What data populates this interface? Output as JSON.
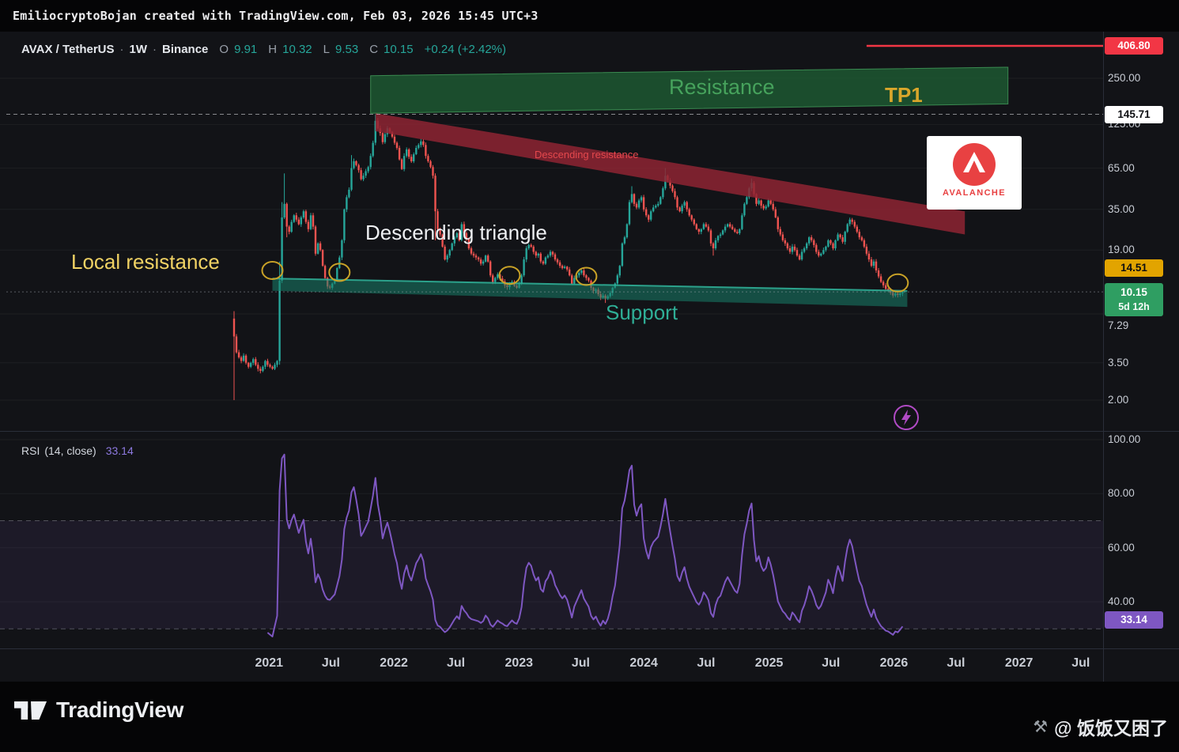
{
  "attribution": {
    "text": "EmiliocryptoBojan created with TradingView.com, Feb 03, 2026 15:45 UTC+3"
  },
  "symbol_bar": {
    "symbol": "AVAX / TetherUS",
    "sep": "·",
    "interval": "1W",
    "exchange": "Binance",
    "o_key": "O",
    "o_val": "9.91",
    "h_key": "H",
    "h_val": "10.32",
    "l_key": "L",
    "l_val": "9.53",
    "c_key": "C",
    "c_val": "10.15",
    "change": "+0.24 (+2.42%)"
  },
  "rsi": {
    "title": "RSI",
    "params": "(14, close)",
    "value": "33.14"
  },
  "annotations": {
    "resistance": "Resistance",
    "tp1": "TP1",
    "descending_resistance": "Descending resistance",
    "descending_triangle": "Descending triangle",
    "local_resistance": "Local resistance",
    "support": "Support"
  },
  "avalanche": {
    "name": "AVALANCHE"
  },
  "brand": {
    "name": "TradingView"
  },
  "watermark": {
    "text": "@ 饭饭又困了"
  },
  "colors": {
    "up": "#26a69a",
    "down": "#ef5350",
    "rsi": "#7e57c2",
    "alert_red": "#f23645",
    "label_yellow": "#e2a400",
    "label_green": "#2f9e62",
    "zone_green": "#1e5d33",
    "band_red": "#8e2433",
    "support_teal": "#17806a",
    "circle_gold": "#c9a227"
  },
  "price_axis": {
    "ticks": [
      {
        "label": "250.00",
        "price": 250
      },
      {
        "label": "125.00",
        "price": 125
      },
      {
        "label": "65.00",
        "price": 65
      },
      {
        "label": "35.00",
        "price": 35
      },
      {
        "label": "19.00",
        "price": 19
      },
      {
        "label": "7.29",
        "price": 7.29
      },
      {
        "label": "3.50",
        "price": 3.5
      },
      {
        "label": "2.00",
        "price": 2.0
      }
    ],
    "labels": {
      "alert": {
        "text": "406.80",
        "price": 406.8,
        "bg": "#f23645",
        "fg": "#ffffff"
      },
      "ath": {
        "text": "145.71",
        "price": 145.71,
        "bg": "#ffffff",
        "fg": "#0d0e12"
      },
      "level": {
        "text": "14.51",
        "price": 14.51,
        "bg": "#e2a400",
        "fg": "#0d0e12"
      },
      "last": {
        "text": "10.15",
        "countdown": "5d 12h",
        "price": 10.15,
        "bg": "#2f9e62",
        "fg": "#ffffff"
      }
    }
  },
  "rsi_axis": {
    "ticks": [
      {
        "label": "100.00",
        "value": 100
      },
      {
        "label": "80.00",
        "value": 80
      },
      {
        "label": "60.00",
        "value": 60
      },
      {
        "label": "40.00",
        "value": 40
      }
    ],
    "last": {
      "text": "33.14",
      "value": 33.14,
      "bg": "#7e57c2",
      "fg": "#ffffff"
    }
  },
  "time_axis": {
    "labels": [
      {
        "text": "2021",
        "week": 14.6
      },
      {
        "text": "Jul",
        "week": 40.4
      },
      {
        "text": "2022",
        "week": 66.7
      },
      {
        "text": "Jul",
        "week": 92.6
      },
      {
        "text": "2023",
        "week": 118.9
      },
      {
        "text": "Jul",
        "week": 144.7
      },
      {
        "text": "2024",
        "week": 171.0
      },
      {
        "text": "Jul",
        "week": 197.0
      },
      {
        "text": "2025",
        "week": 223.3
      },
      {
        "text": "Jul",
        "week": 249.1
      },
      {
        "text": "2026",
        "week": 275.4
      },
      {
        "text": "Jul",
        "week": 301.3
      },
      {
        "text": "2027",
        "week": 327.6
      },
      {
        "text": "Jul",
        "week": 353.4
      }
    ]
  },
  "chart_data": {
    "type": "candlestick",
    "symbol": "AVAX/TetherUS",
    "exchange": "Binance",
    "timeframe": "1W",
    "price_scale": "log",
    "start_week": "2020-09-21",
    "first_open": 6.8,
    "weekly_closes_by_year": {
      "2020": [
        5.2,
        4.1,
        3.8,
        3.6,
        3.9,
        3.5,
        3.3,
        3.5,
        3.7,
        3.4,
        3.2,
        3.1,
        3.3,
        3.6,
        3.4
      ],
      "2021": [
        3.3,
        3.2,
        3.4,
        3.6,
        12.0,
        31.0,
        38.0,
        27.0,
        25.0,
        29.0,
        32.0,
        30.0,
        28.0,
        31.0,
        34.0,
        29.0,
        26.0,
        32.0,
        27.0,
        18.0,
        21.0,
        19.0,
        15.0,
        12.5,
        11.0,
        10.8,
        11.5,
        12.2,
        14.5,
        17.0,
        22.0,
        35.0,
        42.0,
        47.0,
        65.0,
        72.0,
        68.0,
        63.0,
        55.0,
        58.0,
        62.0,
        66.0,
        78.0,
        95.0,
        132.0,
        118.0,
        110.0,
        96.0,
        108.0,
        118.0,
        112.0,
        104.0
      ],
      "2022": [
        95.0,
        88.0,
        74.0,
        64.0,
        78.0,
        86.0,
        77.0,
        72.0,
        80.0,
        88.0,
        92.0,
        97.0,
        92.0,
        78.0,
        72.0,
        66.0,
        58.0,
        34.0,
        26.0,
        24.0,
        20.0,
        16.5,
        17.5,
        19.0,
        21.0,
        23.0,
        24.5,
        22.0,
        28.0,
        24.5,
        22.5,
        19.5,
        18.0,
        17.5,
        17.0,
        16.5,
        15.5,
        16.0,
        17.5,
        16.0,
        13.0,
        11.8,
        12.5,
        13.2,
        12.4,
        11.9,
        11.2,
        10.9,
        11.4,
        11.8,
        11.1,
        10.8
      ],
      "2023": [
        11.5,
        13.0,
        16.5,
        19.5,
        20.5,
        20.0,
        18.5,
        17.5,
        18.0,
        16.0,
        15.5,
        17.0,
        17.5,
        18.5,
        17.8,
        16.5,
        15.8,
        15.0,
        14.5,
        14.8,
        14.2,
        13.0,
        11.5,
        12.5,
        13.0,
        13.5,
        14.0,
        13.0,
        12.5,
        12.0,
        10.8,
        10.3,
        10.5,
        9.8,
        9.3,
        9.6,
        9.2,
        9.5,
        10.0,
        10.8,
        11.5,
        13.0,
        15.0,
        21.0,
        23.0,
        28.0,
        39.0,
        44.0,
        38.0,
        36.0,
        40.0,
        42.0
      ],
      "2024": [
        35.0,
        32.0,
        30.0,
        34.0,
        36.0,
        37.0,
        38.0,
        42.0,
        48.0,
        58.0,
        54.0,
        50.0,
        46.0,
        42.0,
        36.0,
        34.0,
        37.0,
        39.0,
        35.0,
        32.0,
        30.0,
        28.0,
        26.0,
        25.0,
        26.0,
        28.0,
        27.0,
        25.5,
        21.0,
        19.5,
        22.0,
        23.5,
        24.0,
        25.5,
        27.0,
        28.0,
        27.0,
        26.0,
        25.0,
        24.5,
        26.0,
        32.0,
        38.0,
        42.0,
        48.0,
        52.0,
        44.0,
        38.0,
        40.0,
        37.0,
        35.5,
        36.5
      ],
      "2025": [
        40.0,
        38.0,
        35.0,
        31.0,
        26.0,
        24.0,
        22.0,
        21.0,
        19.5,
        18.5,
        20.0,
        19.0,
        17.5,
        16.5,
        18.5,
        19.5,
        21.0,
        23.0,
        22.0,
        20.5,
        18.5,
        17.5,
        18.0,
        19.0,
        20.0,
        22.0,
        21.0,
        19.5,
        22.0,
        24.0,
        23.0,
        21.5,
        25.0,
        28.0,
        30.0,
        29.0,
        27.0,
        25.0,
        23.0,
        22.0,
        20.0,
        18.0,
        16.5,
        15.0,
        16.0,
        14.0,
        12.8,
        11.8,
        11.2,
        10.6,
        10.4,
        10.0
      ],
      "2026": [
        9.6,
        9.9,
        9.7,
        9.91,
        10.15
      ]
    },
    "overrides": {
      "0": {
        "o": 6.8,
        "h": 7.6,
        "l": 2.0
      },
      "19": {
        "h": 16.0,
        "l": 3.4
      },
      "20": {
        "h": 39.0
      },
      "21": {
        "h": 60.0
      },
      "22": {
        "l": 23.0
      },
      "49": {
        "h": 79.0
      },
      "59": {
        "h": 145.71
      },
      "60": {
        "h": 138.0
      },
      "84": {
        "l": 22.0
      },
      "155": {
        "l": 8.6
      },
      "166": {
        "h": 49.5
      },
      "180": {
        "h": 65.0
      },
      "200": {
        "l": 17.5
      },
      "216": {
        "h": 55.6
      },
      "278": {
        "l": 9.4
      },
      "279": {
        "o": 9.91,
        "h": 10.32,
        "l": 9.53,
        "c": 10.15
      }
    },
    "zones": {
      "resistance": {
        "label": "Resistance",
        "from_week": 57,
        "to_week": 323,
        "top_start": 260,
        "top_end": 295,
        "bottom_start": 148,
        "bottom_end": 170
      },
      "descending_resistance": {
        "label": "Descending resistance",
        "from_week": 59,
        "to_week": 305,
        "top_start": 148,
        "top_end": 34,
        "bottom_start": 113,
        "bottom_end": 24
      },
      "support": {
        "label": "Support",
        "from_week": 16,
        "to_week": 281,
        "top_start": 12.4,
        "top_end": 10.3,
        "bottom_start": 10.3,
        "bottom_end": 8.1
      }
    },
    "alert_line": {
      "price": 406.8,
      "from_week": 264
    },
    "dashed_levels": [
      145.71,
      10.15
    ],
    "touch_circles": [
      {
        "week": 16,
        "price": 14.0
      },
      {
        "week": 44,
        "price": 13.6
      },
      {
        "week": 115,
        "price": 13.0
      },
      {
        "week": 147,
        "price": 12.8
      },
      {
        "week": 277,
        "price": 11.6
      }
    ],
    "indicator": {
      "type": "RSI",
      "length": 14,
      "source": "close",
      "last_value": 33.14,
      "overbought": 70,
      "oversold": 30
    }
  }
}
